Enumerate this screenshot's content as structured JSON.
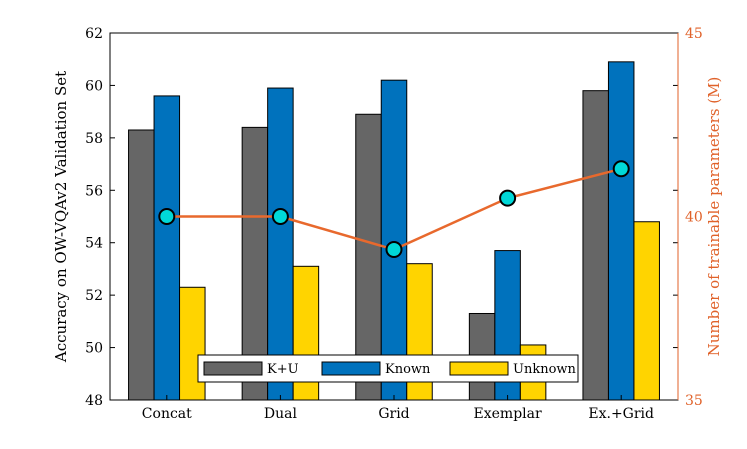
{
  "chart_data": {
    "type": "bar",
    "categories": [
      "Concat",
      "Dual",
      "Grid",
      "Exemplar",
      "Ex.+Grid"
    ],
    "series": [
      {
        "name": "K+U",
        "values": [
          58.3,
          58.4,
          58.9,
          51.3,
          59.8
        ],
        "color": "#666666"
      },
      {
        "name": "Known",
        "values": [
          59.6,
          59.9,
          60.2,
          53.7,
          60.9
        ],
        "color": "#0072bd"
      },
      {
        "name": "Unknown",
        "values": [
          52.3,
          53.1,
          53.2,
          50.1,
          54.8
        ],
        "color": "#ffd400"
      }
    ],
    "line_series": {
      "values": [
        40.0,
        40.0,
        39.1,
        40.5,
        41.3
      ],
      "line_color": "#e8692d",
      "marker_color": "#00d8d8",
      "axis": "right"
    },
    "ylabel": "Accuracy on OW-VQAv2 Validation Set",
    "ylim": [
      48,
      62
    ],
    "yticks": [
      "48",
      "50",
      "52",
      "54",
      "56",
      "58",
      "60",
      "62"
    ],
    "y2label": "Number of trainable parameters (M)",
    "y2lim": [
      35,
      45
    ],
    "y2ticks": [
      "35",
      "40",
      "45"
    ],
    "y2_color": "#e0622a",
    "legend_position": "bottom-center",
    "grid": false
  }
}
